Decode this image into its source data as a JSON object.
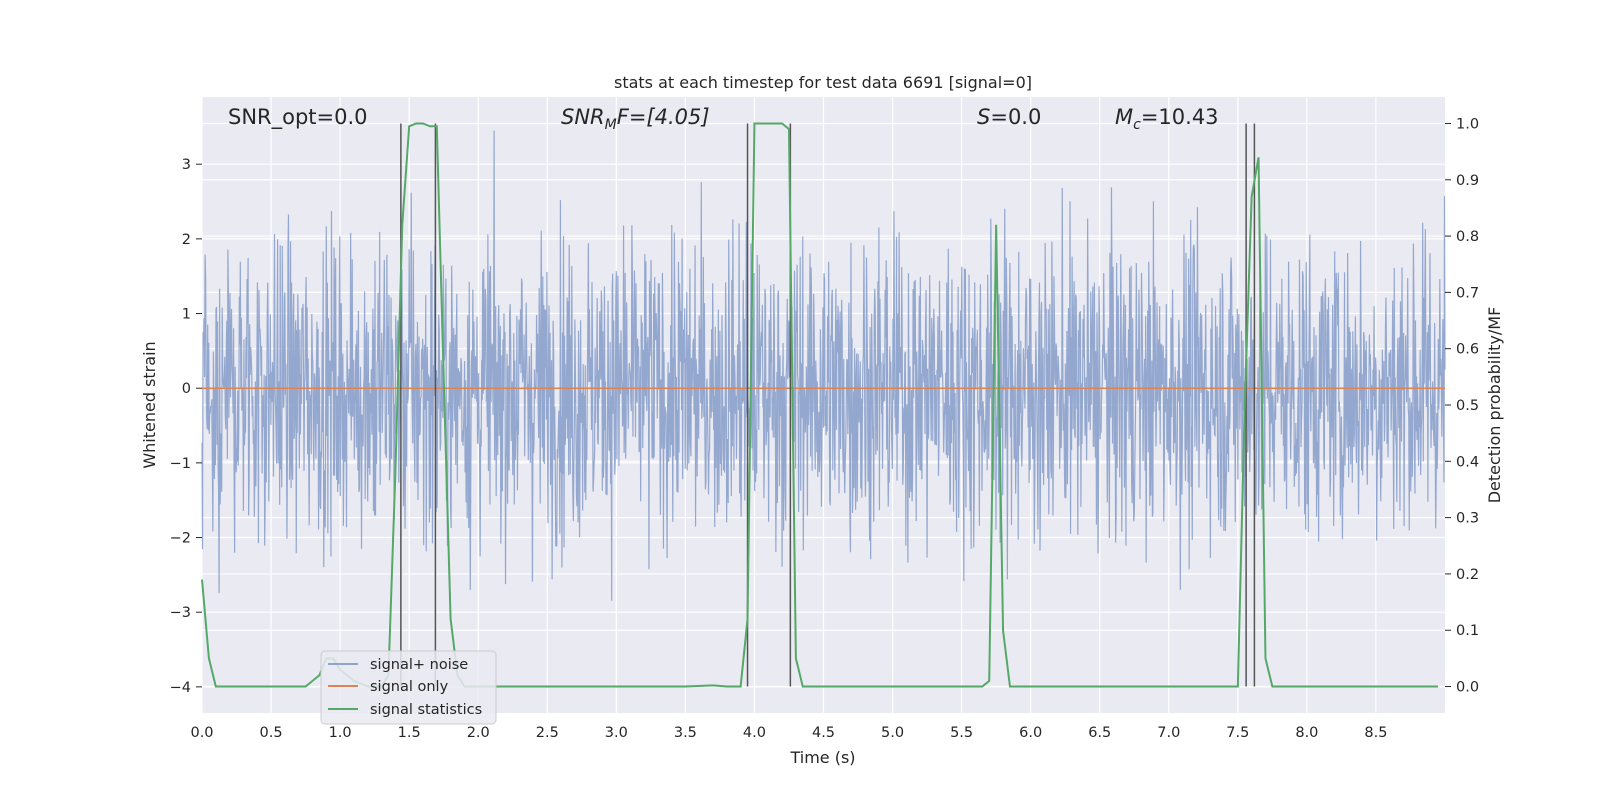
{
  "chart_data": {
    "type": "line",
    "title": "stats at each timestep for test data 6691 [signal=0]",
    "xlabel": "Time (s)",
    "ylabel_left": "Whitened strain",
    "ylabel_right": "Detection probability/MF",
    "xlim": [
      0.0,
      9.0
    ],
    "ylim_left": [
      -4.35,
      3.9
    ],
    "ylim_right": [
      -0.047,
      1.047
    ],
    "xticks": [
      0.0,
      0.5,
      1.0,
      1.5,
      2.0,
      2.5,
      3.0,
      3.5,
      4.0,
      4.5,
      5.0,
      5.5,
      6.0,
      6.5,
      7.0,
      7.5,
      8.0,
      8.5
    ],
    "xtick_labels": [
      "0.0",
      "0.5",
      "1.0",
      "1.5",
      "2.0",
      "2.5",
      "3.0",
      "3.5",
      "4.0",
      "4.5",
      "5.0",
      "5.5",
      "6.0",
      "6.5",
      "7.0",
      "7.5",
      "8.0",
      "8.5"
    ],
    "yticks_left": [
      -4,
      -3,
      -2,
      -1,
      0,
      1,
      2,
      3
    ],
    "ytick_labels_left": [
      "−4",
      "−3",
      "−2",
      "−1",
      "0",
      "1",
      "2",
      "3"
    ],
    "yticks_right": [
      0.0,
      0.1,
      0.2,
      0.3,
      0.4,
      0.5,
      0.6,
      0.7,
      0.8,
      0.9,
      1.0
    ],
    "ytick_labels_right": [
      "0.0",
      "0.1",
      "0.2",
      "0.3",
      "0.4",
      "0.5",
      "0.6",
      "0.7",
      "0.8",
      "0.9",
      "1.0"
    ],
    "grid": true,
    "legend_position": "lower-left",
    "annotations": {
      "snr_opt": "SNR_opt=0.0",
      "snr_mf_base": "SNR",
      "snr_mf_sub": "M",
      "snr_mf_rest": "F=[4.05]",
      "s_sym": "S",
      "s_rest": "=0.0",
      "mc_base": "M",
      "mc_sub": "c",
      "mc_rest": "=10.43"
    },
    "series": [
      {
        "name": "signal+ noise",
        "color": "#8fa4cc",
        "axis": "left",
        "description_of_values": "whitened noise strain, approximately gaussian, mostly within [-2, 2] with spikes up to about 3.4 and down to about -3.6",
        "envelope": [
          -3.6,
          3.45
        ]
      },
      {
        "name": "signal only",
        "color": "#dd8452",
        "axis": "left",
        "x": [
          0.0,
          9.0
        ],
        "y": [
          0.0,
          0.0
        ]
      },
      {
        "name": "signal statistics",
        "color": "#55a868",
        "axis": "right",
        "x": [
          0.0,
          0.05,
          0.1,
          0.2,
          0.3,
          0.5,
          0.7,
          0.75,
          0.8,
          0.85,
          0.9,
          0.95,
          1.0,
          1.1,
          1.2,
          1.3,
          1.35,
          1.4,
          1.45,
          1.5,
          1.55,
          1.6,
          1.65,
          1.7,
          1.75,
          1.8,
          1.85,
          1.9,
          2.0,
          2.3,
          2.5,
          3.0,
          3.5,
          3.7,
          3.8,
          3.85,
          3.9,
          3.95,
          4.0,
          4.1,
          4.2,
          4.25,
          4.3,
          4.35,
          4.4,
          4.6,
          5.0,
          5.5,
          5.65,
          5.7,
          5.75,
          5.8,
          5.85,
          5.9,
          6.0,
          6.5,
          7.0,
          7.5,
          7.55,
          7.6,
          7.65,
          7.7,
          7.75,
          7.8,
          8.0,
          8.5,
          8.95
        ],
        "y": [
          0.19,
          0.05,
          0.0,
          0.0,
          0.0,
          0.0,
          0.0,
          0.0,
          0.01,
          0.02,
          0.05,
          0.05,
          0.03,
          0.01,
          0.0,
          0.0,
          0.02,
          0.38,
          0.82,
          0.995,
          1.0,
          1.0,
          0.995,
          0.995,
          0.55,
          0.12,
          0.02,
          0.0,
          0.0,
          0.0,
          0.0,
          0.0,
          0.0,
          0.002,
          0.0,
          0.0,
          0.0,
          0.12,
          1.0,
          1.0,
          1.0,
          0.99,
          0.05,
          0.0,
          0.0,
          0.0,
          0.0,
          0.0,
          0.0,
          0.01,
          0.82,
          0.1,
          0.0,
          0.0,
          0.0,
          0.0,
          0.0,
          0.0,
          0.5,
          0.87,
          0.94,
          0.05,
          0.0,
          0.0,
          0.0,
          0.0,
          0.0
        ]
      }
    ],
    "vertical_markers": {
      "color": "#555555",
      "x": [
        1.44,
        1.69,
        3.95,
        4.26,
        7.56,
        7.62
      ]
    }
  }
}
